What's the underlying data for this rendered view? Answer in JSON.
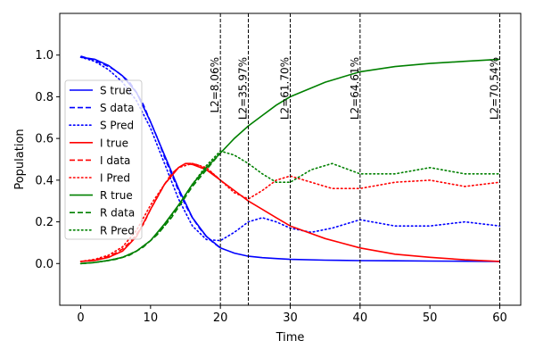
{
  "chart_data": {
    "type": "line",
    "title": "",
    "xlabel": "Time",
    "ylabel": "Population",
    "xlim": [
      -3,
      63
    ],
    "ylim": [
      -0.2,
      1.2
    ],
    "xticks": [
      0,
      10,
      20,
      30,
      40,
      50,
      60
    ],
    "yticks": [
      0.0,
      0.2,
      0.4,
      0.6,
      0.8,
      1.0
    ],
    "xtick_labels": [
      "0",
      "10",
      "20",
      "30",
      "40",
      "50",
      "60"
    ],
    "ytick_labels": [
      "0.0",
      "0.2",
      "0.4",
      "0.6",
      "0.8",
      "1.0"
    ],
    "grid": false,
    "legend_position": "center-left",
    "colors": {
      "S": "#0000ff",
      "I": "#ff0000",
      "R": "#008000"
    },
    "series": [
      {
        "name": "S true",
        "group": "S",
        "style": "solid",
        "x": [
          0,
          2,
          4,
          6,
          8,
          10,
          12,
          14,
          16,
          18,
          20,
          22,
          24,
          26,
          28,
          30,
          35,
          40,
          45,
          50,
          55,
          60
        ],
        "y": [
          0.99,
          0.98,
          0.95,
          0.9,
          0.82,
          0.68,
          0.52,
          0.36,
          0.22,
          0.13,
          0.075,
          0.05,
          0.035,
          0.028,
          0.024,
          0.02,
          0.016,
          0.014,
          0.013,
          0.012,
          0.011,
          0.01
        ]
      },
      {
        "name": "S data",
        "group": "S",
        "style": "dashed",
        "x": [
          0,
          1,
          2,
          3,
          4,
          5,
          6,
          7,
          8,
          9,
          10,
          11,
          12,
          13,
          14,
          15,
          16,
          17,
          18,
          19,
          20
        ],
        "y": [
          0.995,
          0.985,
          0.975,
          0.96,
          0.945,
          0.925,
          0.9,
          0.87,
          0.82,
          0.76,
          0.68,
          0.6,
          0.51,
          0.43,
          0.35,
          0.28,
          0.22,
          0.17,
          0.13,
          0.1,
          0.075
        ]
      },
      {
        "name": "S Pred",
        "group": "S",
        "style": "dotted",
        "x": [
          0,
          2,
          4,
          6,
          8,
          10,
          12,
          14,
          16,
          18,
          20,
          22,
          24,
          26,
          28,
          30,
          33,
          36,
          40,
          45,
          50,
          55,
          60
        ],
        "y": [
          0.99,
          0.97,
          0.93,
          0.87,
          0.78,
          0.65,
          0.48,
          0.31,
          0.18,
          0.115,
          0.11,
          0.15,
          0.2,
          0.22,
          0.2,
          0.17,
          0.15,
          0.17,
          0.21,
          0.18,
          0.18,
          0.2,
          0.18
        ]
      },
      {
        "name": "I true",
        "group": "I",
        "style": "solid",
        "x": [
          0,
          2,
          4,
          6,
          8,
          10,
          12,
          14,
          15,
          16,
          18,
          20,
          22,
          24,
          26,
          28,
          30,
          35,
          40,
          45,
          50,
          55,
          60
        ],
        "y": [
          0.01,
          0.015,
          0.03,
          0.06,
          0.13,
          0.26,
          0.38,
          0.46,
          0.48,
          0.475,
          0.45,
          0.4,
          0.35,
          0.3,
          0.26,
          0.22,
          0.18,
          0.12,
          0.075,
          0.045,
          0.03,
          0.018,
          0.01
        ]
      },
      {
        "name": "I data",
        "group": "I",
        "style": "dashed",
        "x": [
          0,
          1,
          2,
          3,
          4,
          5,
          6,
          7,
          8,
          9,
          10,
          11,
          12,
          13,
          14,
          15,
          16,
          17,
          18,
          19,
          20
        ],
        "y": [
          0.01,
          0.013,
          0.018,
          0.025,
          0.035,
          0.05,
          0.07,
          0.1,
          0.14,
          0.19,
          0.26,
          0.32,
          0.38,
          0.43,
          0.46,
          0.48,
          0.48,
          0.47,
          0.45,
          0.43,
          0.4
        ]
      },
      {
        "name": "I Pred",
        "group": "I",
        "style": "dotted",
        "x": [
          0,
          2,
          4,
          6,
          8,
          10,
          12,
          14,
          16,
          18,
          20,
          22,
          24,
          26,
          28,
          30,
          33,
          36,
          40,
          45,
          50,
          55,
          60
        ],
        "y": [
          0.01,
          0.02,
          0.04,
          0.08,
          0.16,
          0.28,
          0.38,
          0.46,
          0.48,
          0.46,
          0.4,
          0.34,
          0.31,
          0.35,
          0.4,
          0.42,
          0.39,
          0.36,
          0.36,
          0.39,
          0.4,
          0.37,
          0.39
        ]
      },
      {
        "name": "R true",
        "group": "R",
        "style": "solid",
        "x": [
          0,
          2,
          4,
          6,
          8,
          10,
          12,
          14,
          16,
          18,
          20,
          22,
          24,
          26,
          28,
          30,
          35,
          40,
          45,
          50,
          55,
          60
        ],
        "y": [
          0.0,
          0.005,
          0.015,
          0.03,
          0.06,
          0.11,
          0.19,
          0.28,
          0.38,
          0.46,
          0.53,
          0.6,
          0.66,
          0.71,
          0.76,
          0.8,
          0.87,
          0.92,
          0.945,
          0.96,
          0.97,
          0.98
        ]
      },
      {
        "name": "R data",
        "group": "R",
        "style": "dashed",
        "x": [
          0,
          1,
          2,
          3,
          4,
          5,
          6,
          7,
          8,
          9,
          10,
          11,
          12,
          13,
          14,
          15,
          16,
          17,
          18,
          19,
          20
        ],
        "y": [
          0.0,
          0.002,
          0.005,
          0.01,
          0.015,
          0.02,
          0.03,
          0.04,
          0.06,
          0.08,
          0.11,
          0.14,
          0.18,
          0.22,
          0.27,
          0.32,
          0.37,
          0.41,
          0.45,
          0.49,
          0.53
        ]
      },
      {
        "name": "R Pred",
        "group": "R",
        "style": "dotted",
        "x": [
          0,
          2,
          4,
          6,
          8,
          10,
          12,
          14,
          16,
          18,
          20,
          22,
          24,
          26,
          28,
          30,
          33,
          36,
          40,
          45,
          50,
          55,
          60
        ],
        "y": [
          0.0,
          0.005,
          0.015,
          0.03,
          0.06,
          0.11,
          0.18,
          0.28,
          0.38,
          0.47,
          0.54,
          0.52,
          0.48,
          0.43,
          0.39,
          0.39,
          0.45,
          0.48,
          0.43,
          0.43,
          0.46,
          0.43,
          0.43
        ]
      }
    ],
    "vlines": [
      {
        "x": 20,
        "label": "L2=8.06%"
      },
      {
        "x": 24,
        "label": "L2=35.97%"
      },
      {
        "x": 30,
        "label": "L2=61.70%"
      },
      {
        "x": 40,
        "label": "L2=64.61%"
      },
      {
        "x": 60,
        "label": "L2=70.54%"
      }
    ]
  }
}
